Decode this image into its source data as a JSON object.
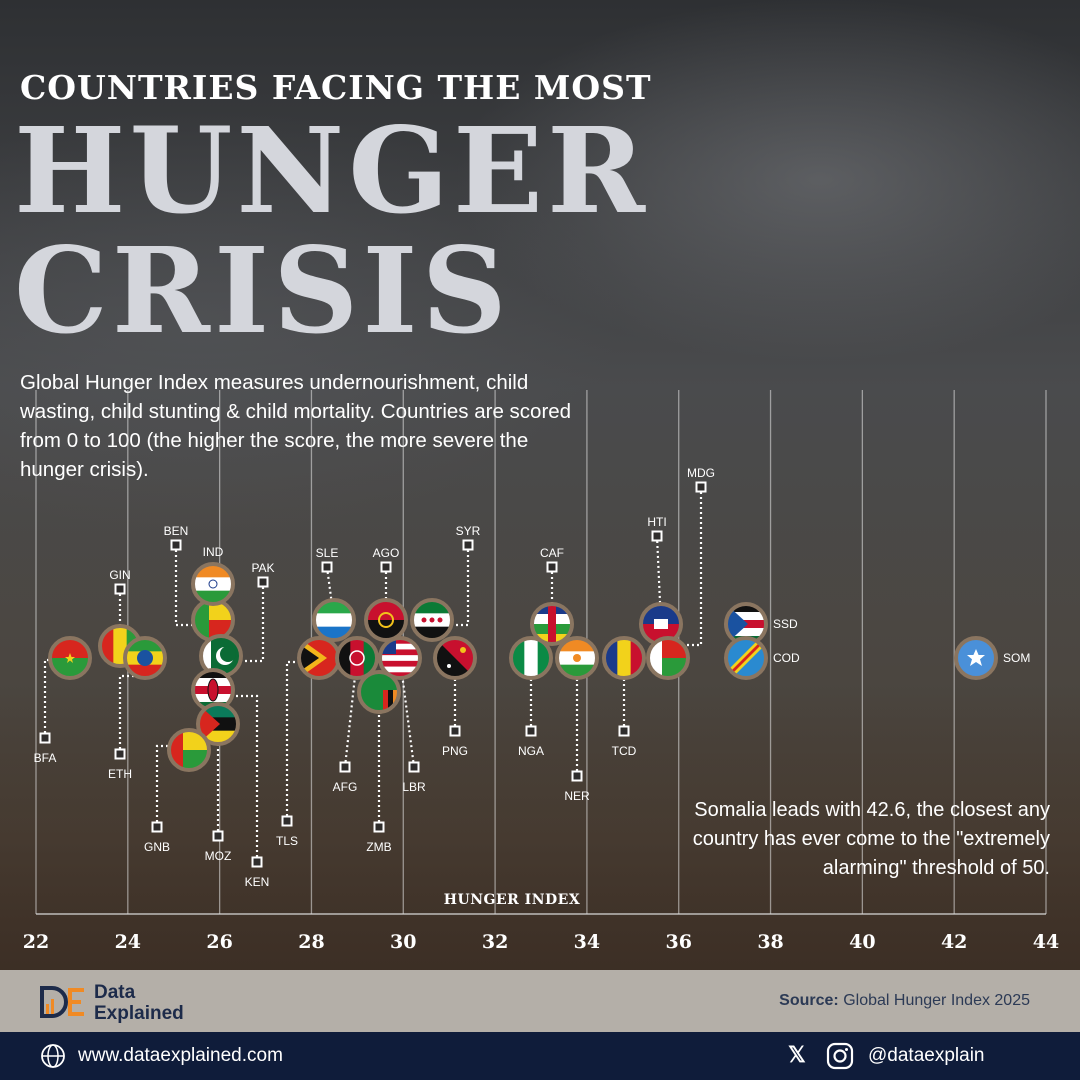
{
  "header": {
    "kicker": "COUNTRIES FACING THE MOST",
    "title_line1": "HUNGER",
    "title_line2": "CRISIS",
    "description": "Global Hunger Index measures undernourishment, child wasting, child stunting & child mortality. Countries are scored from 0 to 100 (the higher the score, the more severe the hunger crisis)."
  },
  "annotation": "Somalia leads with 42.6, the closest any country has ever come to the \"extremely alarming\" threshold of 50.",
  "chart_data": {
    "type": "scatter",
    "xlabel": "HUNGER INDEX",
    "xlim": [
      22,
      44
    ],
    "x_ticks": [
      22,
      24,
      26,
      28,
      30,
      32,
      34,
      36,
      38,
      40,
      42,
      44
    ],
    "grid": "vertical",
    "points": [
      {
        "code": "BFA",
        "x": 23.0
      },
      {
        "code": "GIN",
        "x": 23.9
      },
      {
        "code": "ETH",
        "x": 24.5
      },
      {
        "code": "BEN",
        "x": 25.9
      },
      {
        "code": "IND",
        "x": 25.8
      },
      {
        "code": "PAK",
        "x": 26.0
      },
      {
        "code": "KEN",
        "x": 25.8
      },
      {
        "code": "MOZ",
        "x": 25.9
      },
      {
        "code": "GNB",
        "x": 25.3
      },
      {
        "code": "TLS",
        "x": 28.1
      },
      {
        "code": "SLE",
        "x": 28.5
      },
      {
        "code": "AFG",
        "x": 29.0
      },
      {
        "code": "AGO",
        "x": 29.7
      },
      {
        "code": "ZMB",
        "x": 29.5
      },
      {
        "code": "LBR",
        "x": 30.0
      },
      {
        "code": "SYR",
        "x": 30.8
      },
      {
        "code": "PNG",
        "x": 31.2
      },
      {
        "code": "NGA",
        "x": 32.9
      },
      {
        "code": "CAF",
        "x": 33.4
      },
      {
        "code": "NER",
        "x": 34.0
      },
      {
        "code": "TCD",
        "x": 35.0
      },
      {
        "code": "HTI",
        "x": 35.8
      },
      {
        "code": "MDG",
        "x": 36.0
      },
      {
        "code": "SSD",
        "x": 37.6
      },
      {
        "code": "COD",
        "x": 37.6
      },
      {
        "code": "SOM",
        "x": 42.6
      }
    ]
  },
  "footer": {
    "brand_line1": "Data",
    "brand_line2": "Explained",
    "source_label": "Source:",
    "source_text": "Global Hunger Index 2025",
    "website": "www.dataexplained.com",
    "social": "@dataexplain"
  },
  "colors": {
    "title": "#d4d6dc",
    "ring": "#8a7560",
    "footer_band": "#b4afa8",
    "footer_bar": "#0f1c3a",
    "brand_navy": "#1d2b4a",
    "brand_orange": "#f08a24"
  }
}
